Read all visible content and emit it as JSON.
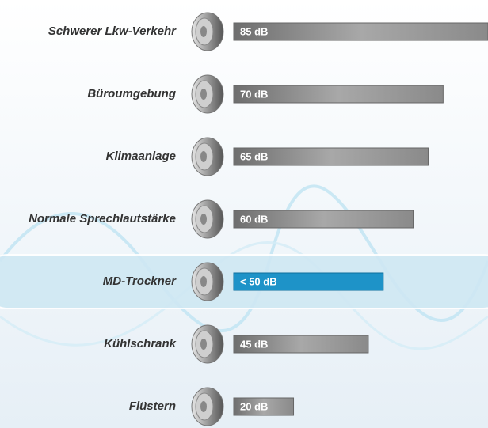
{
  "chart_data": {
    "type": "bar",
    "categories": [
      "Schwerer Lkw-Verkehr",
      "Büroumgebung",
      "Klimaanlage",
      "Normale Sprechlautstärke",
      "MD-Trockner",
      "Kühlschrank",
      "Flüstern"
    ],
    "values": [
      85,
      70,
      65,
      60,
      50,
      45,
      20
    ],
    "value_labels": [
      "85 dB",
      "70 dB",
      "65 dB",
      "60 dB",
      "< 50 dB",
      "45 dB",
      "20 dB"
    ],
    "colors": [
      "#8c8c8c",
      "#8c8c8c",
      "#8c8c8c",
      "#8c8c8c",
      "#1e93c8",
      "#8c8c8c",
      "#8c8c8c"
    ],
    "highlight_color": "#1e93c8"
  }
}
